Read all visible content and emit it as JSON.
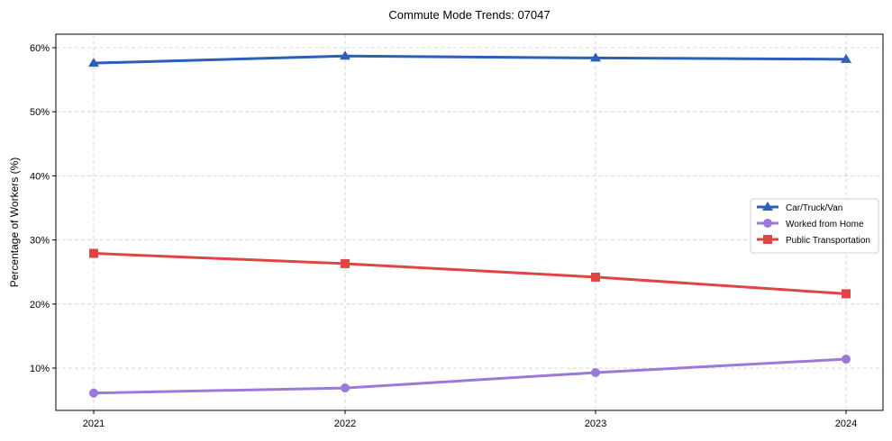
{
  "chart_data": {
    "type": "line",
    "title": "Commute Mode Trends: 07047",
    "xlabel": "",
    "ylabel": "Percentage of Workers (%)",
    "categories": [
      "2021",
      "2022",
      "2023",
      "2024"
    ],
    "series": [
      {
        "name": "Car/Truck/Van",
        "values": [
          57.6,
          58.7,
          58.4,
          58.2
        ],
        "color": "#2b5fb8",
        "marker": "triangle"
      },
      {
        "name": "Worked from Home",
        "values": [
          6.1,
          6.9,
          9.3,
          11.4
        ],
        "color": "#9b79d8",
        "marker": "circle"
      },
      {
        "name": "Public Transportation",
        "values": [
          27.9,
          26.3,
          24.2,
          21.6
        ],
        "color": "#e04545",
        "marker": "square"
      }
    ],
    "yticks": [
      10,
      20,
      30,
      40,
      50,
      60
    ],
    "ytick_labels": [
      "10%",
      "20%",
      "30%",
      "40%",
      "50%",
      "60%"
    ],
    "ylim": [
      3.5,
      62
    ],
    "grid": true,
    "legend_position": "center right"
  }
}
